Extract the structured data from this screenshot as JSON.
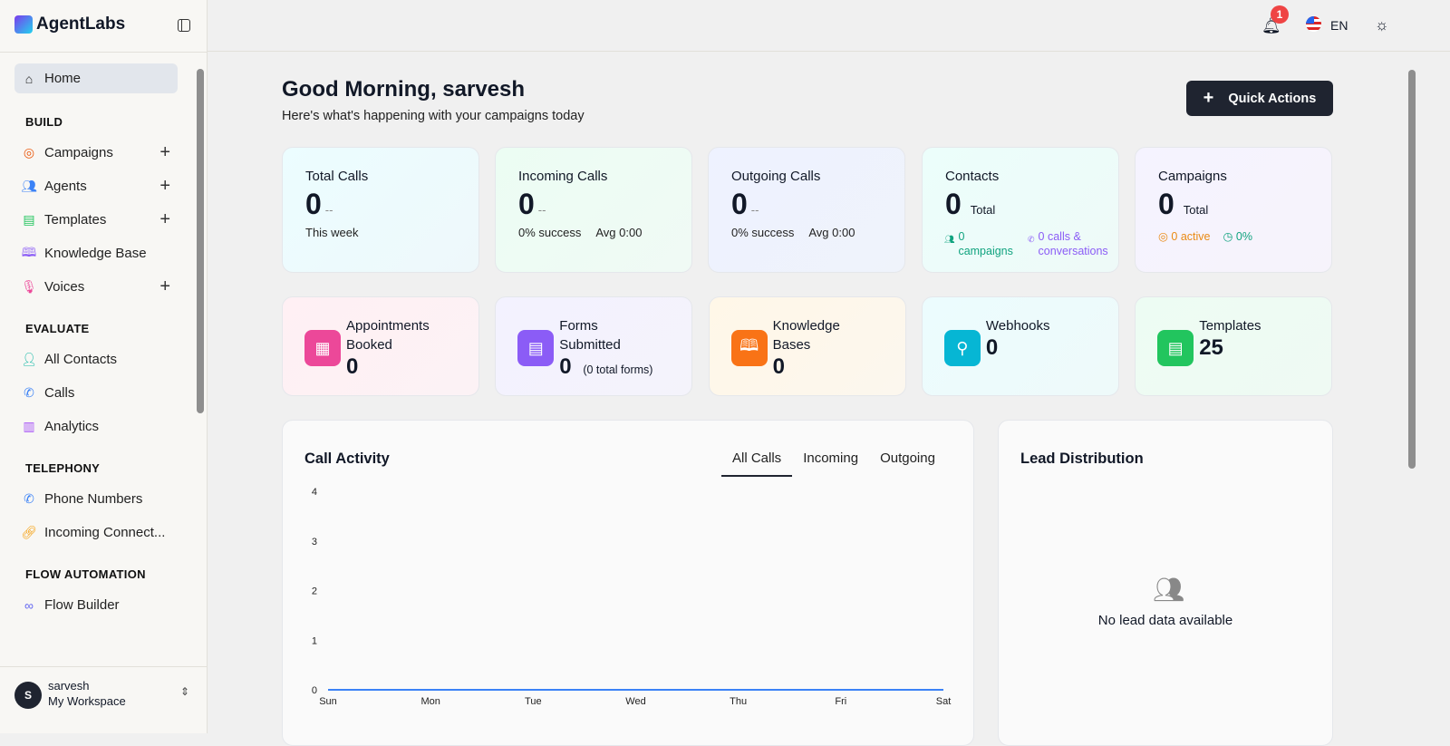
{
  "app": {
    "name": "AgentLabs"
  },
  "sidebar": {
    "home": "Home",
    "sections": [
      {
        "title": "BUILD",
        "items": [
          {
            "label": "Campaigns",
            "icon": "target-icon",
            "plus": true
          },
          {
            "label": "Agents",
            "icon": "users-icon",
            "plus": true
          },
          {
            "label": "Templates",
            "icon": "file-icon",
            "plus": true
          },
          {
            "label": "Knowledge Base",
            "icon": "book-icon",
            "plus": false
          },
          {
            "label": "Voices",
            "icon": "mic-icon",
            "plus": true
          }
        ]
      },
      {
        "title": "EVALUATE",
        "items": [
          {
            "label": "All Contacts",
            "icon": "user-check-icon"
          },
          {
            "label": "Calls",
            "icon": "phone-icon"
          },
          {
            "label": "Analytics",
            "icon": "bar-chart-icon"
          }
        ]
      },
      {
        "title": "TELEPHONY",
        "items": [
          {
            "label": "Phone Numbers",
            "icon": "phone-icon"
          },
          {
            "label": "Incoming Connect...",
            "icon": "link-icon"
          }
        ]
      },
      {
        "title": "FLOW AUTOMATION",
        "items": [
          {
            "label": "Flow Builder",
            "icon": "workflow-icon"
          }
        ]
      }
    ],
    "user": {
      "initial": "S",
      "name": "sarvesh",
      "workspace": "My Workspace"
    }
  },
  "header": {
    "notifications": "1",
    "language": "EN"
  },
  "main": {
    "greeting": "Good Morning, sarvesh",
    "subtitle": "Here's what's happening with your campaigns today",
    "quick_actions": "Quick Actions",
    "stats": {
      "total_calls": {
        "title": "Total Calls",
        "value": "0",
        "trend": "--",
        "note": "This week"
      },
      "incoming": {
        "title": "Incoming Calls",
        "value": "0",
        "trend": "--",
        "success": "0% success",
        "avg": "Avg 0:00"
      },
      "outgoing": {
        "title": "Outgoing Calls",
        "value": "0",
        "trend": "--",
        "success": "0% success",
        "avg": "Avg 0:00"
      },
      "contacts": {
        "title": "Contacts",
        "value": "0",
        "unit": "Total",
        "campaigns": "0 campaigns",
        "calls": "0 calls & conversations"
      },
      "campaigns": {
        "title": "Campaigns",
        "value": "0",
        "unit": "Total",
        "active": "0 active",
        "rate": "0%"
      }
    },
    "tiles": [
      {
        "title": "Appointments Booked",
        "value": "0",
        "extra": "",
        "color": "#ec4899"
      },
      {
        "title": "Forms Submitted",
        "value": "0",
        "extra": "(0 total forms)",
        "color": "#8b5cf6"
      },
      {
        "title": "Knowledge Bases",
        "value": "0",
        "extra": "",
        "color": "#f97316"
      },
      {
        "title": "Webhooks",
        "value": "0",
        "extra": "",
        "color": "#06b6d4"
      },
      {
        "title": "Templates",
        "value": "25",
        "extra": "",
        "color": "#22c55e"
      }
    ],
    "call_activity": {
      "title": "Call Activity",
      "tabs": [
        "All Calls",
        "Incoming",
        "Outgoing"
      ],
      "active_tab": "All Calls"
    },
    "lead": {
      "title": "Lead Distribution",
      "empty": "No lead data available"
    }
  },
  "chart_data": {
    "type": "line",
    "categories": [
      "Sun",
      "Mon",
      "Tue",
      "Wed",
      "Thu",
      "Fri",
      "Sat"
    ],
    "values": [
      0,
      0,
      0,
      0,
      0,
      0,
      0
    ],
    "ylim": [
      0,
      4
    ],
    "yticks": [
      "0",
      "1",
      "2",
      "3",
      "4"
    ],
    "grid": false,
    "color": "#3b82f6"
  }
}
